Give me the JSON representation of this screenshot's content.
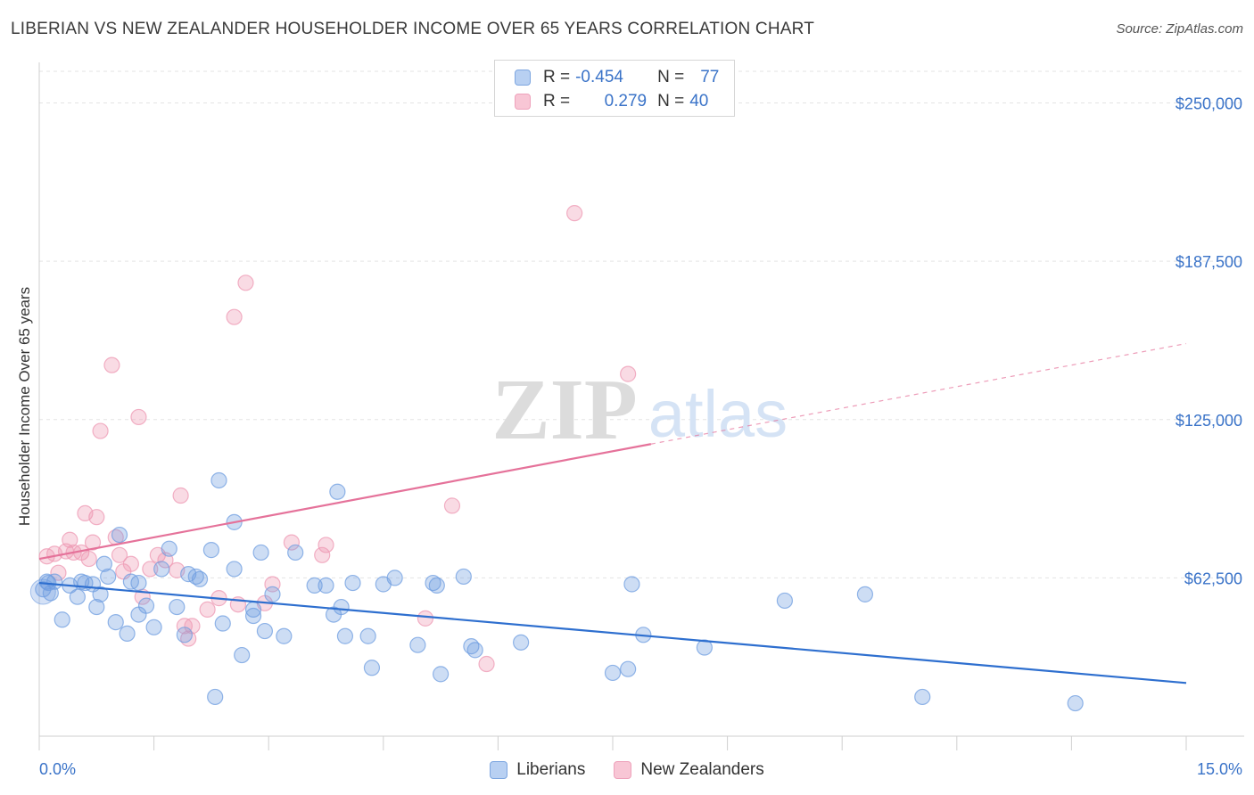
{
  "title": "LIBERIAN VS NEW ZEALANDER HOUSEHOLDER INCOME OVER 65 YEARS CORRELATION CHART",
  "source": "Source: ZipAtlas.com",
  "watermark": {
    "zip": "ZIP",
    "atlas": "atlas"
  },
  "legend": {
    "rows": [
      {
        "r_label": "R =",
        "r_value": "-0.454",
        "n_label": "N =",
        "n_value": "77"
      },
      {
        "r_label": "R =",
        "r_value": "0.279",
        "n_label": "N =",
        "n_value": "40"
      }
    ]
  },
  "chart_data": {
    "type": "scatter",
    "ylabel": "Householder Income Over 65 years",
    "x_tick_labels": [
      "0.0%",
      "15.0%"
    ],
    "xlim": [
      0,
      15
    ],
    "ylim": [
      0,
      262500
    ],
    "y_ticks": [
      {
        "value": 62500,
        "label": "$62,500"
      },
      {
        "value": 125000,
        "label": "$125,000"
      },
      {
        "value": 187500,
        "label": "$187,500"
      },
      {
        "value": 250000,
        "label": "$250,000"
      }
    ],
    "grid": true,
    "colors": {
      "liberians": "#6f9de0",
      "new_zealanders": "#ee98b3",
      "blue_line": "#2e6fcf",
      "pink_line": "#e5729a",
      "tick_label": "#3a73c8"
    },
    "series": [
      {
        "name": "Liberians",
        "trend": {
          "x0": 0,
          "y0": 60500,
          "x1": 15,
          "y1": 21000
        },
        "points": [
          [
            0.05,
            58000
          ],
          [
            0.1,
            61000
          ],
          [
            0.12,
            60500
          ],
          [
            0.15,
            56500
          ],
          [
            0.2,
            61000
          ],
          [
            0.3,
            46000
          ],
          [
            0.4,
            59500
          ],
          [
            0.5,
            55000
          ],
          [
            0.55,
            61000
          ],
          [
            0.6,
            60500
          ],
          [
            0.7,
            60000
          ],
          [
            0.75,
            51000
          ],
          [
            0.8,
            56000
          ],
          [
            0.85,
            68000
          ],
          [
            0.9,
            63000
          ],
          [
            1.0,
            45000
          ],
          [
            1.05,
            79500
          ],
          [
            1.15,
            40500
          ],
          [
            1.2,
            61000
          ],
          [
            1.3,
            48000
          ],
          [
            1.3,
            60500
          ],
          [
            1.4,
            51500
          ],
          [
            1.5,
            43000
          ],
          [
            1.6,
            66000
          ],
          [
            1.7,
            74000
          ],
          [
            1.8,
            51000
          ],
          [
            1.9,
            40000
          ],
          [
            1.95,
            64000
          ],
          [
            2.05,
            63000
          ],
          [
            2.1,
            62000
          ],
          [
            2.25,
            73500
          ],
          [
            2.3,
            15500
          ],
          [
            2.35,
            101000
          ],
          [
            2.4,
            44500
          ],
          [
            2.55,
            66000
          ],
          [
            2.55,
            84500
          ],
          [
            2.65,
            32000
          ],
          [
            2.8,
            47500
          ],
          [
            2.8,
            50000
          ],
          [
            2.9,
            72500
          ],
          [
            2.95,
            41500
          ],
          [
            3.05,
            56000
          ],
          [
            3.2,
            39500
          ],
          [
            3.35,
            72500
          ],
          [
            3.6,
            59500
          ],
          [
            3.75,
            59500
          ],
          [
            3.85,
            48000
          ],
          [
            3.9,
            96500
          ],
          [
            3.95,
            51000
          ],
          [
            4.0,
            39500
          ],
          [
            4.1,
            60500
          ],
          [
            4.3,
            39500
          ],
          [
            4.35,
            27000
          ],
          [
            4.5,
            60000
          ],
          [
            4.65,
            62500
          ],
          [
            4.95,
            36000
          ],
          [
            5.15,
            60500
          ],
          [
            5.2,
            59500
          ],
          [
            5.25,
            24500
          ],
          [
            5.55,
            63000
          ],
          [
            5.65,
            35500
          ],
          [
            5.7,
            34000
          ],
          [
            6.3,
            37000
          ],
          [
            7.5,
            25000
          ],
          [
            7.7,
            26500
          ],
          [
            7.75,
            60000
          ],
          [
            7.9,
            40000
          ],
          [
            8.7,
            35000
          ],
          [
            9.75,
            53500
          ],
          [
            10.8,
            56000
          ],
          [
            11.55,
            15500
          ],
          [
            13.55,
            13000
          ]
        ]
      },
      {
        "name": "New Zealanders",
        "trend": {
          "x0": 0,
          "y0": 70000,
          "x1": 15,
          "y1": 155000,
          "solid_until_x": 8
        },
        "points": [
          [
            0.1,
            71000
          ],
          [
            0.2,
            72000
          ],
          [
            0.25,
            64500
          ],
          [
            0.35,
            73000
          ],
          [
            0.4,
            77500
          ],
          [
            0.45,
            72500
          ],
          [
            0.55,
            72500
          ],
          [
            0.6,
            88000
          ],
          [
            0.65,
            70000
          ],
          [
            0.7,
            76500
          ],
          [
            0.75,
            86500
          ],
          [
            0.8,
            120500
          ],
          [
            0.95,
            146500
          ],
          [
            1.0,
            78500
          ],
          [
            1.05,
            71500
          ],
          [
            1.1,
            65000
          ],
          [
            1.2,
            68000
          ],
          [
            1.35,
            55000
          ],
          [
            1.3,
            126000
          ],
          [
            1.45,
            66000
          ],
          [
            1.55,
            71500
          ],
          [
            1.65,
            69500
          ],
          [
            1.8,
            65500
          ],
          [
            1.85,
            95000
          ],
          [
            1.9,
            43500
          ],
          [
            2.0,
            43500
          ],
          [
            1.95,
            38500
          ],
          [
            2.2,
            50000
          ],
          [
            2.35,
            54500
          ],
          [
            2.55,
            165500
          ],
          [
            2.6,
            52000
          ],
          [
            2.7,
            179000
          ],
          [
            2.95,
            52500
          ],
          [
            3.05,
            60000
          ],
          [
            3.3,
            76500
          ],
          [
            3.75,
            75500
          ],
          [
            3.7,
            71500
          ],
          [
            5.05,
            46500
          ],
          [
            5.4,
            91000
          ],
          [
            5.85,
            28500
          ],
          [
            7.0,
            206500
          ],
          [
            7.7,
            143000
          ]
        ]
      }
    ]
  },
  "bottom_legend": [
    "Liberians",
    "New Zealanders"
  ]
}
